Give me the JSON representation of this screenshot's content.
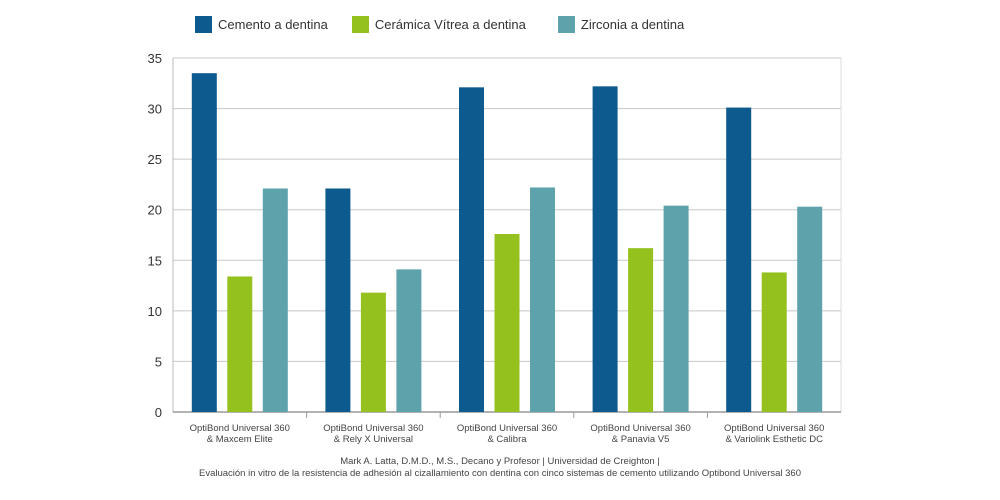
{
  "chart_data": {
    "type": "bar",
    "categories": [
      [
        "OptiBond Universal 360",
        "& Maxcem Elite"
      ],
      [
        "OptiBond Universal 360",
        "& Rely X Universal"
      ],
      [
        "OptiBond Universal 360",
        "& Calibra"
      ],
      [
        "OptiBond Universal 360",
        "& Panavia V5"
      ],
      [
        "OptiBond Universal 360",
        "& Variolink Esthetic DC"
      ]
    ],
    "series": [
      {
        "name": "Cemento a dentina",
        "color": "#0d5a8f",
        "values": [
          33.5,
          22.1,
          32.1,
          32.2,
          30.1
        ]
      },
      {
        "name": "Cerámica Vítrea a dentina",
        "color": "#95c11f",
        "values": [
          13.4,
          11.8,
          17.6,
          16.2,
          13.8
        ]
      },
      {
        "name": "Zirconia a dentina",
        "color": "#5ea3ac",
        "values": [
          22.1,
          14.1,
          22.2,
          20.4,
          20.3
        ]
      }
    ],
    "ylim": [
      0,
      35
    ],
    "yticks": [
      0,
      5,
      10,
      15,
      20,
      25,
      30,
      35
    ],
    "grid": true,
    "legend": "top"
  },
  "footer": {
    "line1": "Mark A. Latta, D.M.D., M.S., Decano y Profesor | Universidad de Creighton |",
    "line2": "Evaluación in vitro de la resistencia de adhesión al cizallamiento con dentina con cinco sistemas de cemento utilizando Optibond Universal 360"
  }
}
